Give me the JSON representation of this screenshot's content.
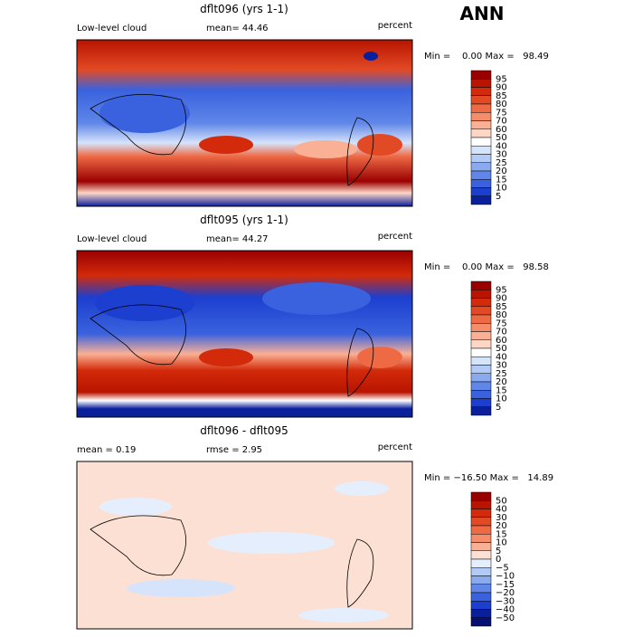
{
  "title": "ANN",
  "panels": [
    {
      "title": "dflt096 (yrs 1-1)",
      "left": "Low-level cloud",
      "stat": "mean=  44.46",
      "units": "percent",
      "minmax": "Min =    0.00 Max =   98.49",
      "colorbar": {
        "labels": [
          "95",
          "90",
          "85",
          "80",
          "75",
          "70",
          "60",
          "50",
          "40",
          "30",
          "25",
          "20",
          "15",
          "10",
          "5"
        ],
        "colors": [
          "#9a0000",
          "#b81400",
          "#d22a0a",
          "#e24a25",
          "#ee6a45",
          "#f58c6a",
          "#fab094",
          "#fdd6c6",
          "#ffffff",
          "#d6e4fb",
          "#b2cbf6",
          "#8aaaf0",
          "#5f86e8",
          "#3a62de",
          "#1c3fcf",
          "#0a1f9c"
        ]
      }
    },
    {
      "title": "dflt095 (yrs 1-1)",
      "left": "Low-level cloud",
      "stat": "mean=  44.27",
      "units": "percent",
      "minmax": "Min =    0.00 Max =   98.58",
      "colorbar": {
        "labels": [
          "95",
          "90",
          "85",
          "80",
          "75",
          "70",
          "60",
          "50",
          "40",
          "30",
          "25",
          "20",
          "15",
          "10",
          "5"
        ],
        "colors": [
          "#9a0000",
          "#b81400",
          "#d22a0a",
          "#e24a25",
          "#ee6a45",
          "#f58c6a",
          "#fab094",
          "#fdd6c6",
          "#ffffff",
          "#d6e4fb",
          "#b2cbf6",
          "#8aaaf0",
          "#5f86e8",
          "#3a62de",
          "#1c3fcf",
          "#0a1f9c"
        ]
      }
    },
    {
      "title": "dflt096 - dflt095",
      "left": "mean =    0.19",
      "stat": "rmse =    2.95",
      "units": "percent",
      "minmax": "Min = −16.50 Max =   14.89",
      "colorbar": {
        "labels": [
          "50",
          "40",
          "30",
          "20",
          "15",
          "10",
          "5",
          "0",
          "−5",
          "−10",
          "−15",
          "−20",
          "−30",
          "−40",
          "−50"
        ],
        "colors": [
          "#9a0000",
          "#b81400",
          "#d22a0a",
          "#e24a25",
          "#ee6a45",
          "#f58c6a",
          "#fab094",
          "#fde0d4",
          "#e4eefc",
          "#b2cbf6",
          "#8aaaf0",
          "#5f86e8",
          "#3a62de",
          "#1c3fcf",
          "#0a1f9c",
          "#061070"
        ]
      }
    }
  ]
}
